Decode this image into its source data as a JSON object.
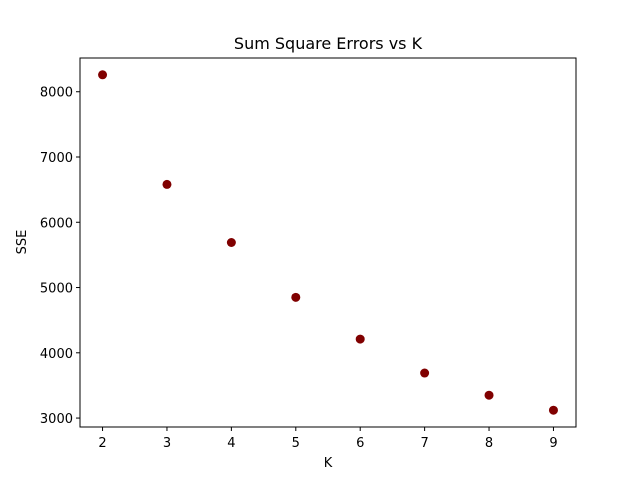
{
  "chart_data": {
    "type": "scatter",
    "title": "Sum Square Errors vs K",
    "xlabel": "K",
    "ylabel": "SSE",
    "x": [
      2,
      3,
      4,
      5,
      6,
      7,
      8,
      9
    ],
    "y": [
      8260,
      6580,
      5690,
      4850,
      4210,
      3690,
      3350,
      3120
    ],
    "xlim": [
      1.65,
      9.35
    ],
    "ylim": [
      2863,
      8517
    ],
    "xticks": [
      2,
      3,
      4,
      5,
      6,
      7,
      8,
      9
    ],
    "yticks": [
      3000,
      4000,
      5000,
      6000,
      7000,
      8000
    ],
    "xtick_labels": [
      "2",
      "3",
      "4",
      "5",
      "6",
      "7",
      "8",
      "9"
    ],
    "ytick_labels": [
      "3000",
      "4000",
      "5000",
      "6000",
      "7000",
      "8000"
    ],
    "marker_color": "#800000",
    "grid": false,
    "legend": "none"
  }
}
